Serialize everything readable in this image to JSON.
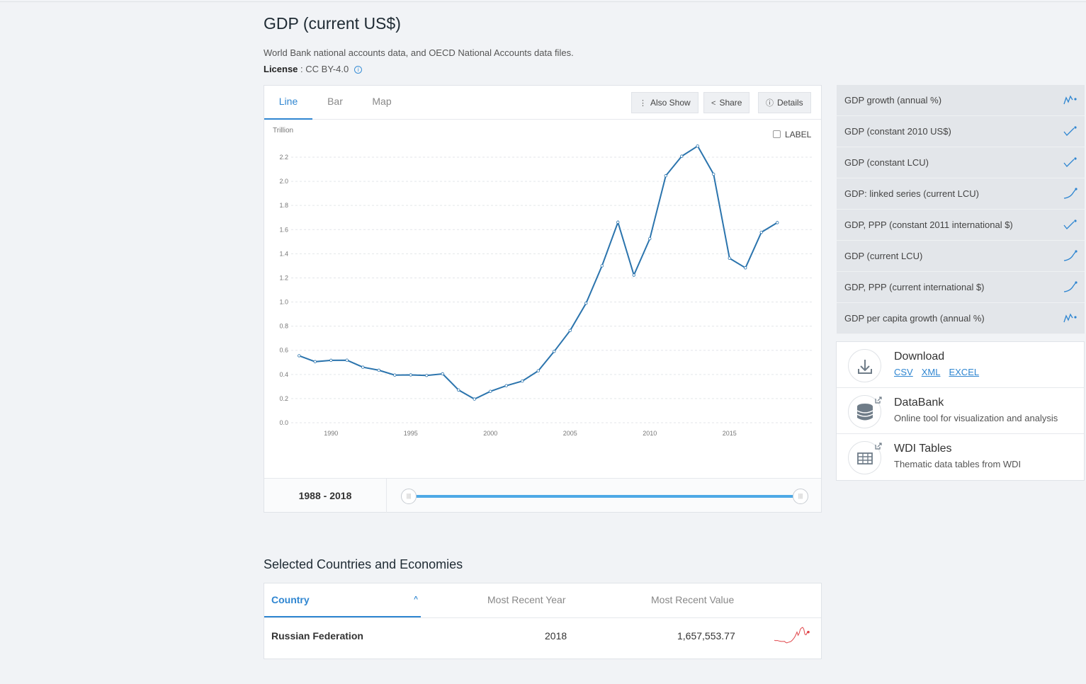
{
  "page": {
    "title": "GDP (current US$)",
    "source": "World Bank national accounts data, and OECD National Accounts data files.",
    "license_label": "License",
    "license_value": " : CC BY-4.0"
  },
  "tabs": [
    {
      "label": "Line",
      "active": true
    },
    {
      "label": "Bar",
      "active": false
    },
    {
      "label": "Map",
      "active": false
    }
  ],
  "toolbar": {
    "also_show": "Also Show",
    "share": "Share",
    "details": "Details"
  },
  "label_toggle": "LABEL",
  "range": {
    "start": "1988",
    "end": "2018",
    "separator": " - "
  },
  "related_indicators": [
    {
      "label": "GDP growth (annual %)",
      "icon": "volatile-sparkline-icon"
    },
    {
      "label": "GDP (constant 2010 US$)",
      "icon": "check-sparkline-icon"
    },
    {
      "label": "GDP (constant LCU)",
      "icon": "check-sparkline-icon"
    },
    {
      "label": "GDP: linked series (current LCU)",
      "icon": "rising-sparkline-icon"
    },
    {
      "label": "GDP, PPP (constant 2011 international $)",
      "icon": "check-sparkline-icon"
    },
    {
      "label": "GDP (current LCU)",
      "icon": "rising-sparkline-icon"
    },
    {
      "label": "GDP, PPP (current international $)",
      "icon": "rising-sparkline-icon"
    },
    {
      "label": "GDP per capita growth (annual %)",
      "icon": "volatile-sparkline-icon"
    }
  ],
  "tools": {
    "download": {
      "title": "Download",
      "links": [
        "CSV",
        "XML",
        "EXCEL"
      ]
    },
    "databank": {
      "title": "DataBank",
      "subtitle": "Online tool for visualization and analysis"
    },
    "wdi": {
      "title": "WDI Tables",
      "subtitle": "Thematic data tables from WDI"
    }
  },
  "selected": {
    "title": "Selected Countries and Economies",
    "headers": {
      "country": "Country",
      "year": "Most Recent Year",
      "value": "Most Recent Value"
    },
    "rows": [
      {
        "country": "Russian Federation",
        "year": "2018",
        "value": "1,657,553.77"
      }
    ]
  },
  "colors": {
    "accent": "#2f86d1",
    "line": "#2b74ad",
    "spark": "#e0454a"
  },
  "chart_data": {
    "type": "line",
    "title": "GDP (current US$)",
    "unit_label": "Trillion",
    "x": [
      1988,
      1989,
      1990,
      1991,
      1992,
      1993,
      1994,
      1995,
      1996,
      1997,
      1998,
      1999,
      2000,
      2001,
      2002,
      2003,
      2004,
      2005,
      2006,
      2007,
      2008,
      2009,
      2010,
      2011,
      2012,
      2013,
      2014,
      2015,
      2016,
      2017,
      2018
    ],
    "series": [
      {
        "values": [
          0.555,
          0.506,
          0.517,
          0.518,
          0.46,
          0.435,
          0.395,
          0.396,
          0.392,
          0.405,
          0.271,
          0.196,
          0.26,
          0.307,
          0.345,
          0.43,
          0.591,
          0.764,
          0.99,
          1.3,
          1.661,
          1.223,
          1.525,
          2.046,
          2.208,
          2.292,
          2.059,
          1.363,
          1.283,
          1.578,
          1.658
        ]
      }
    ],
    "ylim": [
      0,
      2.2
    ],
    "yticks": [
      "0.0",
      "0.2",
      "0.4",
      "0.6",
      "0.8",
      "1.0",
      "1.2",
      "1.4",
      "1.6",
      "1.8",
      "2.0",
      "2.2"
    ],
    "xticks": [
      "1990",
      "1995",
      "2000",
      "2005",
      "2010",
      "2015"
    ],
    "grid": true
  }
}
